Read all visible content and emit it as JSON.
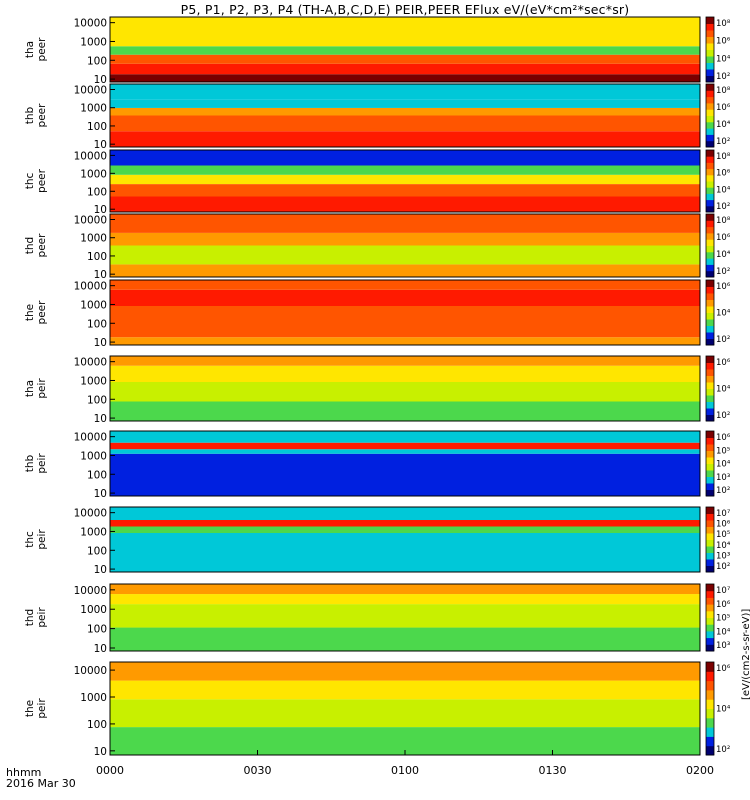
{
  "title": "P5, P1, P2, P3, P4 (TH-A,B,C,D,E) PEIR,PEER EFlux eV/(eV*cm²*sec*sr)",
  "time_axis": {
    "label_line1": "hhmm",
    "label_line2": "2016 Mar 30",
    "ticks": [
      "0000",
      "0030",
      "0100",
      "0130",
      "0200"
    ]
  },
  "colorbar_unit_label": "[eV/(cm2-s-sr-eV)]",
  "chart_data": [
    {
      "type": "heatmap",
      "panel": "tha peer",
      "ylabel_probe": "tha",
      "ylabel_kind": "peer",
      "scale": "log",
      "yticks": [
        "10000",
        "1000",
        "100",
        "10"
      ],
      "cbar_ticks": [
        "10⁸",
        "10⁶",
        "10⁴",
        "10²"
      ],
      "x_range": [
        "0000",
        "0200"
      ]
    },
    {
      "type": "heatmap",
      "panel": "thb peer",
      "ylabel_probe": "thb",
      "ylabel_kind": "peer",
      "scale": "log",
      "yticks": [
        "10000",
        "1000",
        "100",
        "10"
      ],
      "cbar_ticks": [
        "10⁸",
        "10⁶",
        "10⁴",
        "10²"
      ],
      "x_range": [
        "0000",
        "0200"
      ]
    },
    {
      "type": "heatmap",
      "panel": "thc peer",
      "ylabel_probe": "thc",
      "ylabel_kind": "peer",
      "scale": "log",
      "yticks": [
        "10000",
        "1000",
        "100",
        "10"
      ],
      "cbar_ticks": [
        "10⁸",
        "10⁶",
        "10⁴",
        "10²"
      ],
      "x_range": [
        "0000",
        "0200"
      ]
    },
    {
      "type": "heatmap",
      "panel": "thd peer",
      "ylabel_probe": "thd",
      "ylabel_kind": "peer",
      "scale": "log",
      "yticks": [
        "10000",
        "1000",
        "100",
        "10"
      ],
      "cbar_ticks": [
        "10⁸",
        "10⁶",
        "10⁴",
        "10²"
      ],
      "x_range": [
        "0000",
        "0200"
      ]
    },
    {
      "type": "heatmap",
      "panel": "the peer",
      "ylabel_probe": "the",
      "ylabel_kind": "peer",
      "scale": "log",
      "yticks": [
        "10000",
        "1000",
        "100",
        "10"
      ],
      "cbar_ticks": [
        "10⁶",
        "10⁴",
        "10²"
      ],
      "x_range": [
        "0000",
        "0200"
      ]
    },
    {
      "type": "heatmap",
      "panel": "tha peir",
      "ylabel_probe": "tha",
      "ylabel_kind": "peir",
      "scale": "log",
      "yticks": [
        "10000",
        "1000",
        "100",
        "10"
      ],
      "cbar_ticks": [
        "10⁶",
        "10⁴",
        "10²"
      ],
      "x_range": [
        "0000",
        "0200"
      ]
    },
    {
      "type": "heatmap",
      "panel": "thb peir",
      "ylabel_probe": "thb",
      "ylabel_kind": "peir",
      "scale": "log",
      "yticks": [
        "10000",
        "1000",
        "100",
        "10"
      ],
      "cbar_ticks": [
        "10⁶",
        "10⁵",
        "10⁴",
        "10³",
        "10²"
      ],
      "x_range": [
        "0000",
        "0200"
      ]
    },
    {
      "type": "heatmap",
      "panel": "thc peir",
      "ylabel_probe": "thc",
      "ylabel_kind": "peir",
      "scale": "log",
      "yticks": [
        "10000",
        "1000",
        "100",
        "10"
      ],
      "cbar_ticks": [
        "10⁷",
        "10⁶",
        "10⁵",
        "10⁴",
        "10³",
        "10²"
      ],
      "x_range": [
        "0000",
        "0200"
      ]
    },
    {
      "type": "heatmap",
      "panel": "thd peir",
      "ylabel_probe": "thd",
      "ylabel_kind": "peir",
      "scale": "log",
      "yticks": [
        "10000",
        "1000",
        "100",
        "10"
      ],
      "cbar_ticks": [
        "10⁷",
        "10⁶",
        "10⁵",
        "10⁴",
        "10³"
      ],
      "x_range": [
        "0000",
        "0200"
      ]
    },
    {
      "type": "heatmap",
      "panel": "the peir",
      "ylabel_probe": "the",
      "ylabel_kind": "peir",
      "scale": "log",
      "yticks": [
        "10000",
        "1000",
        "100",
        "10"
      ],
      "cbar_ticks": [
        "10⁶",
        "10⁴",
        "10²"
      ],
      "x_range": [
        "0000",
        "0200"
      ]
    }
  ],
  "colors": {
    "dark_red": "#7a0000",
    "red": "#ff1a00",
    "orange_red": "#ff5500",
    "orange": "#ff9a00",
    "yellow": "#ffe600",
    "yellow_green": "#c8f000",
    "green": "#4cd84c",
    "cyan": "#00c8d8",
    "blue": "#0020e0",
    "dark_blue": "#000070",
    "black": "#000000"
  }
}
